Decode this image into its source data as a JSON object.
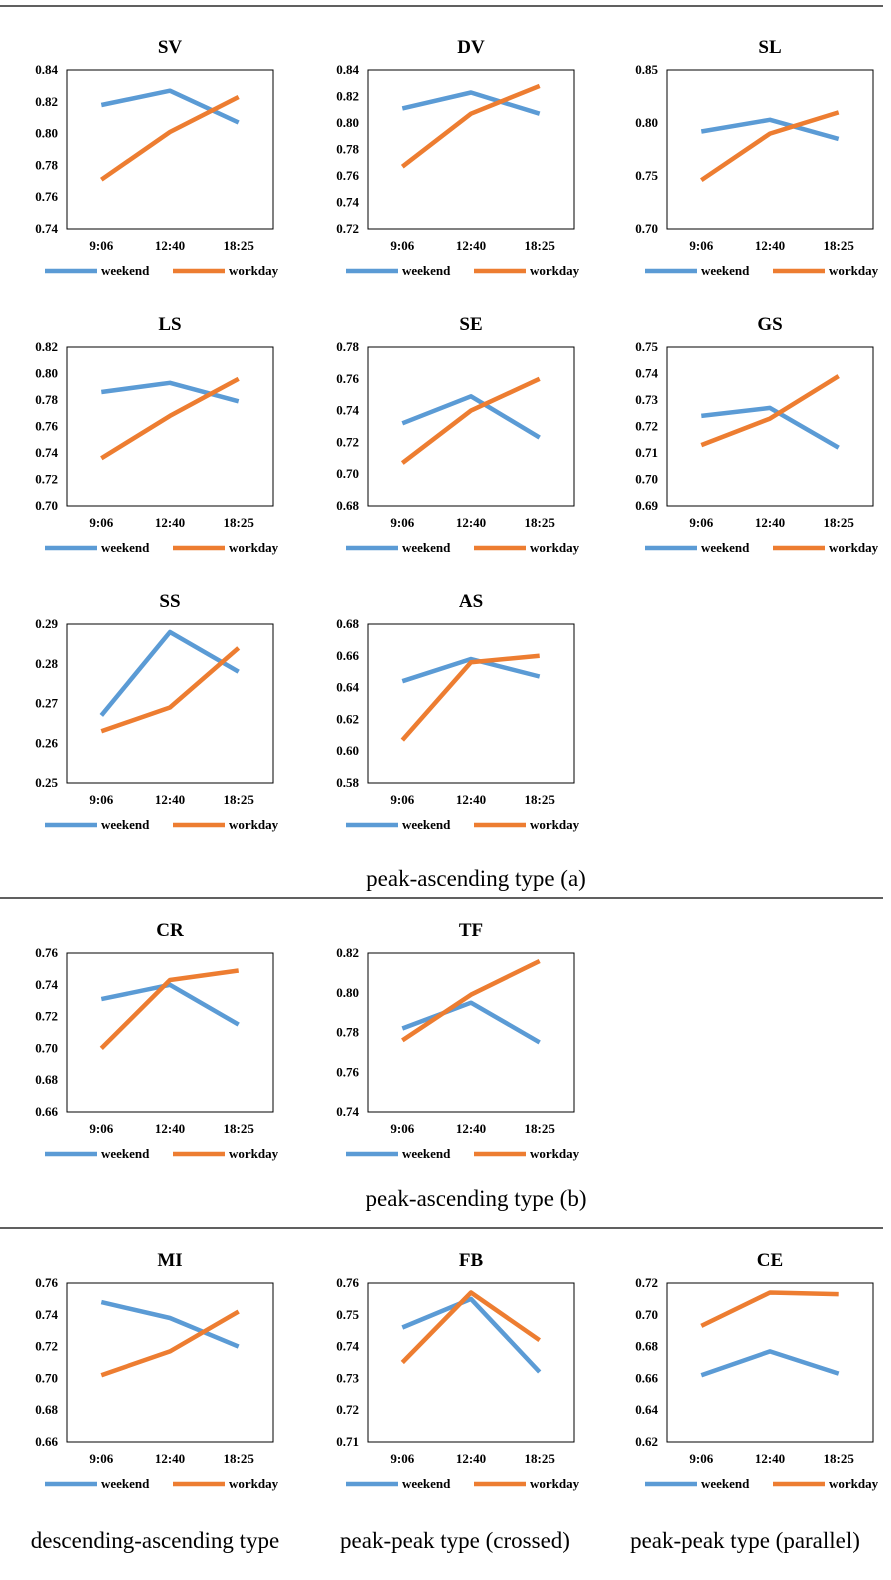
{
  "colors": {
    "weekend": "#5b9bd5",
    "workday": "#ed7d31",
    "rule": "#000000",
    "axis": "#000000"
  },
  "sections": [
    {
      "caption": "peak-ascending type (a)"
    },
    {
      "caption": "peak-ascending type (b)"
    },
    {
      "caption": ""
    }
  ],
  "bottom_captions": [
    "descending-ascending type",
    "peak-peak type (crossed)",
    "peak-peak type (parallel)"
  ],
  "chart_data": [
    {
      "type": "line",
      "title": "SV",
      "categories": [
        "9:06",
        "12:40",
        "18:25"
      ],
      "ylim": [
        0.74,
        0.84
      ],
      "yticks": [
        "0.74",
        "0.76",
        "0.78",
        "0.80",
        "0.82",
        "0.84"
      ],
      "series": [
        {
          "name": "weekend",
          "values": [
            0.818,
            0.827,
            0.807
          ]
        },
        {
          "name": "workday",
          "values": [
            0.771,
            0.801,
            0.823
          ]
        }
      ],
      "legend": "bottom",
      "grid": false
    },
    {
      "type": "line",
      "title": "DV",
      "categories": [
        "9:06",
        "12:40",
        "18:25"
      ],
      "ylim": [
        0.72,
        0.84
      ],
      "yticks": [
        "0.72",
        "0.74",
        "0.76",
        "0.78",
        "0.80",
        "0.82",
        "0.84"
      ],
      "series": [
        {
          "name": "weekend",
          "values": [
            0.811,
            0.823,
            0.807
          ]
        },
        {
          "name": "workday",
          "values": [
            0.767,
            0.807,
            0.828
          ]
        }
      ],
      "legend": "bottom",
      "grid": false
    },
    {
      "type": "line",
      "title": "SL",
      "categories": [
        "9:06",
        "12:40",
        "18:25"
      ],
      "ylim": [
        0.7,
        0.85
      ],
      "yticks": [
        "0.70",
        "0.75",
        "0.80",
        "0.85"
      ],
      "series": [
        {
          "name": "weekend",
          "values": [
            0.792,
            0.803,
            0.785
          ]
        },
        {
          "name": "workday",
          "values": [
            0.746,
            0.79,
            0.81
          ]
        }
      ],
      "legend": "bottom",
      "grid": false
    },
    {
      "type": "line",
      "title": "LS",
      "categories": [
        "9:06",
        "12:40",
        "18:25"
      ],
      "ylim": [
        0.7,
        0.82
      ],
      "yticks": [
        "0.70",
        "0.72",
        "0.74",
        "0.76",
        "0.78",
        "0.80",
        "0.82"
      ],
      "series": [
        {
          "name": "weekend",
          "values": [
            0.786,
            0.793,
            0.779
          ]
        },
        {
          "name": "workday",
          "values": [
            0.736,
            0.768,
            0.796
          ]
        }
      ],
      "legend": "bottom",
      "grid": false
    },
    {
      "type": "line",
      "title": "SE",
      "categories": [
        "9:06",
        "12:40",
        "18:25"
      ],
      "ylim": [
        0.68,
        0.78
      ],
      "yticks": [
        "0.68",
        "0.70",
        "0.72",
        "0.74",
        "0.76",
        "0.78"
      ],
      "series": [
        {
          "name": "weekend",
          "values": [
            0.732,
            0.749,
            0.723
          ]
        },
        {
          "name": "workday",
          "values": [
            0.707,
            0.74,
            0.76
          ]
        }
      ],
      "legend": "bottom",
      "grid": false
    },
    {
      "type": "line",
      "title": "GS",
      "categories": [
        "9:06",
        "12:40",
        "18:25"
      ],
      "ylim": [
        0.69,
        0.75
      ],
      "yticks": [
        "0.69",
        "0.70",
        "0.71",
        "0.72",
        "0.73",
        "0.74",
        "0.75"
      ],
      "series": [
        {
          "name": "weekend",
          "values": [
            0.724,
            0.727,
            0.712
          ]
        },
        {
          "name": "workday",
          "values": [
            0.713,
            0.723,
            0.739
          ]
        }
      ],
      "legend": "bottom",
      "grid": false
    },
    {
      "type": "line",
      "title": "SS",
      "categories": [
        "9:06",
        "12:40",
        "18:25"
      ],
      "ylim": [
        0.25,
        0.29
      ],
      "yticks": [
        "0.25",
        "0.26",
        "0.27",
        "0.28",
        "0.29"
      ],
      "series": [
        {
          "name": "weekend",
          "values": [
            0.267,
            0.288,
            0.278
          ]
        },
        {
          "name": "workday",
          "values": [
            0.263,
            0.269,
            0.284
          ]
        }
      ],
      "legend": "bottom",
      "grid": false
    },
    {
      "type": "line",
      "title": "AS",
      "categories": [
        "9:06",
        "12:40",
        "18:25"
      ],
      "ylim": [
        0.58,
        0.68
      ],
      "yticks": [
        "0.58",
        "0.60",
        "0.62",
        "0.64",
        "0.66",
        "0.68"
      ],
      "series": [
        {
          "name": "weekend",
          "values": [
            0.644,
            0.658,
            0.647
          ]
        },
        {
          "name": "workday",
          "values": [
            0.607,
            0.656,
            0.66
          ]
        }
      ],
      "legend": "bottom",
      "grid": false
    },
    {
      "type": "line",
      "title": "CR",
      "categories": [
        "9:06",
        "12:40",
        "18:25"
      ],
      "ylim": [
        0.66,
        0.76
      ],
      "yticks": [
        "0.66",
        "0.68",
        "0.70",
        "0.72",
        "0.74",
        "0.76"
      ],
      "series": [
        {
          "name": "weekend",
          "values": [
            0.731,
            0.74,
            0.715
          ]
        },
        {
          "name": "workday",
          "values": [
            0.7,
            0.743,
            0.749
          ]
        }
      ],
      "legend": "bottom",
      "grid": false
    },
    {
      "type": "line",
      "title": "TF",
      "categories": [
        "9:06",
        "12:40",
        "18:25"
      ],
      "ylim": [
        0.74,
        0.82
      ],
      "yticks": [
        "0.74",
        "0.76",
        "0.78",
        "0.80",
        "0.82"
      ],
      "series": [
        {
          "name": "weekend",
          "values": [
            0.782,
            0.795,
            0.775
          ]
        },
        {
          "name": "workday",
          "values": [
            0.776,
            0.799,
            0.816
          ]
        }
      ],
      "legend": "bottom",
      "grid": false
    },
    {
      "type": "line",
      "title": "MI",
      "categories": [
        "9:06",
        "12:40",
        "18:25"
      ],
      "ylim": [
        0.66,
        0.76
      ],
      "yticks": [
        "0.66",
        "0.68",
        "0.70",
        "0.72",
        "0.74",
        "0.76"
      ],
      "series": [
        {
          "name": "weekend",
          "values": [
            0.748,
            0.738,
            0.72
          ]
        },
        {
          "name": "workday",
          "values": [
            0.702,
            0.717,
            0.742
          ]
        }
      ],
      "legend": "bottom",
      "grid": false
    },
    {
      "type": "line",
      "title": "FB",
      "categories": [
        "9:06",
        "12:40",
        "18:25"
      ],
      "ylim": [
        0.71,
        0.76
      ],
      "yticks": [
        "0.71",
        "0.72",
        "0.73",
        "0.74",
        "0.75",
        "0.76"
      ],
      "series": [
        {
          "name": "weekend",
          "values": [
            0.746,
            0.755,
            0.732
          ]
        },
        {
          "name": "workday",
          "values": [
            0.735,
            0.757,
            0.742
          ]
        }
      ],
      "legend": "bottom",
      "grid": false
    },
    {
      "type": "line",
      "title": "CE",
      "categories": [
        "9:06",
        "12:40",
        "18:25"
      ],
      "ylim": [
        0.62,
        0.72
      ],
      "yticks": [
        "0.62",
        "0.64",
        "0.66",
        "0.68",
        "0.70",
        "0.72"
      ],
      "series": [
        {
          "name": "weekend",
          "values": [
            0.662,
            0.677,
            0.663
          ]
        },
        {
          "name": "workday",
          "values": [
            0.693,
            0.714,
            0.713
          ]
        }
      ],
      "legend": "bottom",
      "grid": false
    }
  ]
}
